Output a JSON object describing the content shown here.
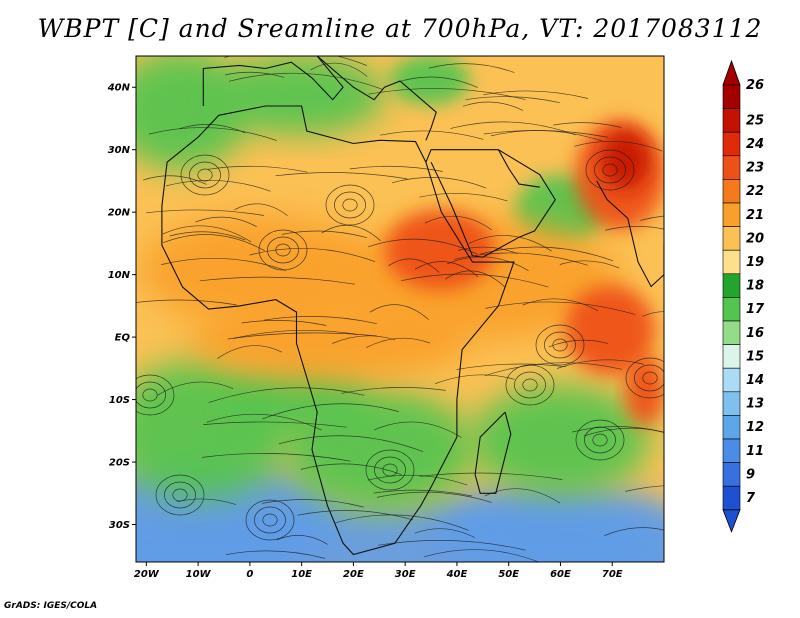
{
  "title": "WBPT [C] and Sreamline at 700hPa, VT: 2017083112",
  "credit": "GrADS: IGES/COLA",
  "map": {
    "lon_range": [
      -22,
      80
    ],
    "lat_range": [
      -36,
      45
    ],
    "lat_ticks": [
      {
        "value": 40,
        "label": "40N"
      },
      {
        "value": 30,
        "label": "30N"
      },
      {
        "value": 20,
        "label": "20N"
      },
      {
        "value": 10,
        "label": "10N"
      },
      {
        "value": 0,
        "label": "EQ"
      },
      {
        "value": -10,
        "label": "10S"
      },
      {
        "value": -20,
        "label": "20S"
      },
      {
        "value": -30,
        "label": "30S"
      }
    ],
    "lon_ticks": [
      {
        "value": -20,
        "label": "20W"
      },
      {
        "value": -10,
        "label": "10W"
      },
      {
        "value": 0,
        "label": "0"
      },
      {
        "value": 10,
        "label": "10E"
      },
      {
        "value": 20,
        "label": "20E"
      },
      {
        "value": 30,
        "label": "30E"
      },
      {
        "value": 40,
        "label": "40E"
      },
      {
        "value": 50,
        "label": "50E"
      },
      {
        "value": 60,
        "label": "60E"
      },
      {
        "value": 70,
        "label": "70E"
      }
    ]
  },
  "colorbar": {
    "levels": [
      {
        "label": "26",
        "color": "#a50000"
      },
      {
        "label": "25",
        "color": "#c41200"
      },
      {
        "label": "24",
        "color": "#e02a0a"
      },
      {
        "label": "23",
        "color": "#ee5018"
      },
      {
        "label": "22",
        "color": "#f57a1c"
      },
      {
        "label": "21",
        "color": "#f9a02a"
      },
      {
        "label": "20",
        "color": "#fbc155"
      },
      {
        "label": "19",
        "color": "#fde08c"
      },
      {
        "label": "18",
        "color": "#24a42e"
      },
      {
        "label": "17",
        "color": "#52c44f"
      },
      {
        "label": "16",
        "color": "#96dc88"
      },
      {
        "label": "15",
        "color": "#dcf5e8"
      },
      {
        "label": "14",
        "color": "#aadcf5"
      },
      {
        "label": "13",
        "color": "#7ec0ee"
      },
      {
        "label": "12",
        "color": "#5ea6ea"
      },
      {
        "label": "11",
        "color": "#4a8ce6"
      },
      {
        "label": "9",
        "color": "#3870e0"
      },
      {
        "label": "7",
        "color": "#1e50d2"
      }
    ]
  },
  "colors": {
    "ocean_cool": "#5e9ce8",
    "green": "#52c44f",
    "warm": "#fbc155",
    "hot": "#ee5018",
    "hottest": "#c41200"
  }
}
